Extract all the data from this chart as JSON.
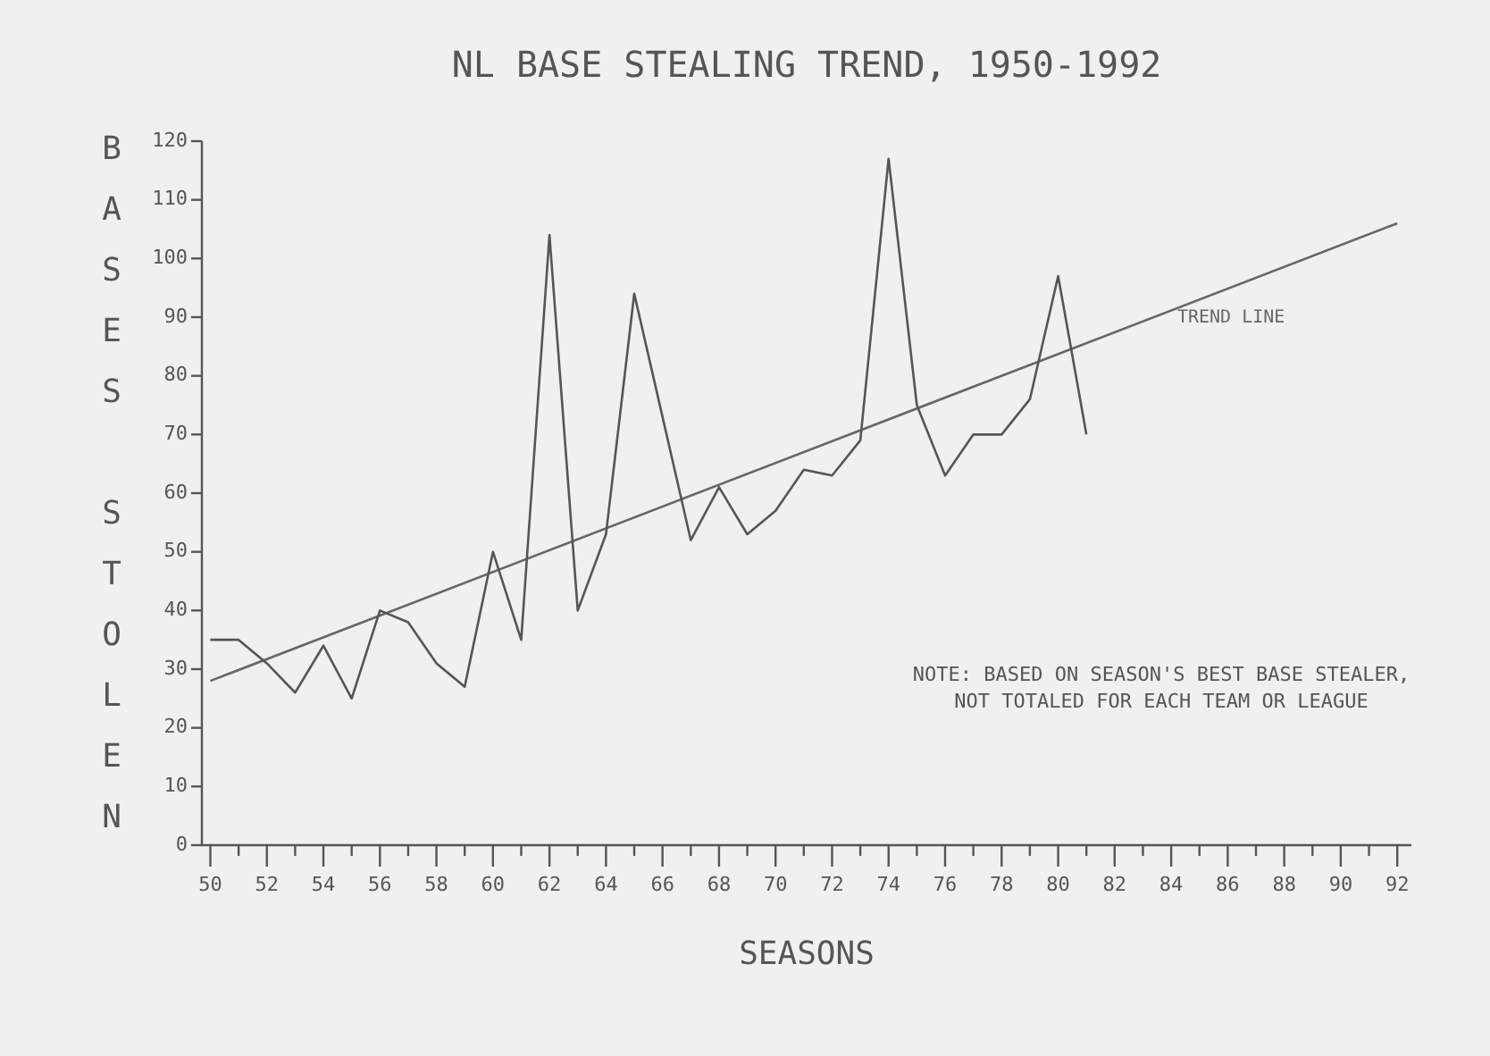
{
  "chart_data": {
    "type": "line",
    "title": "NL BASE STEALING TREND, 1950-1992",
    "xlabel": "SEASONS",
    "ylabel": "BASES STOLEN",
    "x": [
      50,
      51,
      52,
      53,
      54,
      55,
      56,
      57,
      58,
      59,
      60,
      61,
      62,
      63,
      64,
      65,
      66,
      67,
      68,
      69,
      70,
      71,
      72,
      73,
      74,
      75,
      76,
      77,
      78,
      79,
      80,
      81
    ],
    "series": [
      {
        "color": "#555555",
        "values": [
          35,
          35,
          31,
          26,
          34,
          25,
          40,
          38,
          31,
          27,
          50,
          35,
          104,
          40,
          53,
          94,
          73,
          52,
          61,
          53,
          57,
          64,
          63,
          69,
          117,
          75,
          63,
          70,
          70,
          76,
          97,
          70
        ]
      },
      {
        "name": "TREND LINE",
        "color": "#666666",
        "x": [
          50,
          92
        ],
        "values": [
          28,
          106
        ]
      }
    ],
    "xlim": [
      49.7,
      92.5
    ],
    "xticks": [
      50,
      {
        "value": 51,
        "label": null
      },
      52,
      {
        "value": 53,
        "label": null
      },
      54,
      {
        "value": 55,
        "label": null
      },
      56,
      {
        "value": 57,
        "label": null
      },
      58,
      {
        "value": 59,
        "label": null
      },
      60,
      {
        "value": 61,
        "label": null
      },
      62,
      {
        "value": 63,
        "label": null
      },
      64,
      {
        "value": 65,
        "label": null
      },
      66,
      {
        "value": 67,
        "label": null
      },
      68,
      {
        "value": 69,
        "label": null
      },
      70,
      {
        "value": 71,
        "label": null
      },
      72,
      {
        "value": 73,
        "label": null
      },
      74,
      {
        "value": 75,
        "label": null
      },
      76,
      {
        "value": 77,
        "label": null
      },
      78,
      {
        "value": 79,
        "label": null
      },
      80,
      {
        "value": 81,
        "label": null
      },
      82,
      {
        "value": 83,
        "label": null
      },
      84,
      {
        "value": 85,
        "label": null
      },
      86,
      {
        "value": 87,
        "label": null
      },
      88,
      {
        "value": 89,
        "label": null
      },
      90,
      {
        "value": 91,
        "label": null
      },
      92
    ],
    "ylim": [
      0,
      120
    ],
    "yticks": [
      0,
      10,
      20,
      30,
      40,
      50,
      60,
      70,
      80,
      90,
      100,
      110,
      120
    ],
    "grid": false,
    "legend": false,
    "marker": "none",
    "line_style": "solid",
    "annotations": [
      "NOTE: BASED ON SEASON'S BEST BASE STEALER,\nNOT TOTALED FOR EACH TEAM OR LEAGUE"
    ]
  }
}
